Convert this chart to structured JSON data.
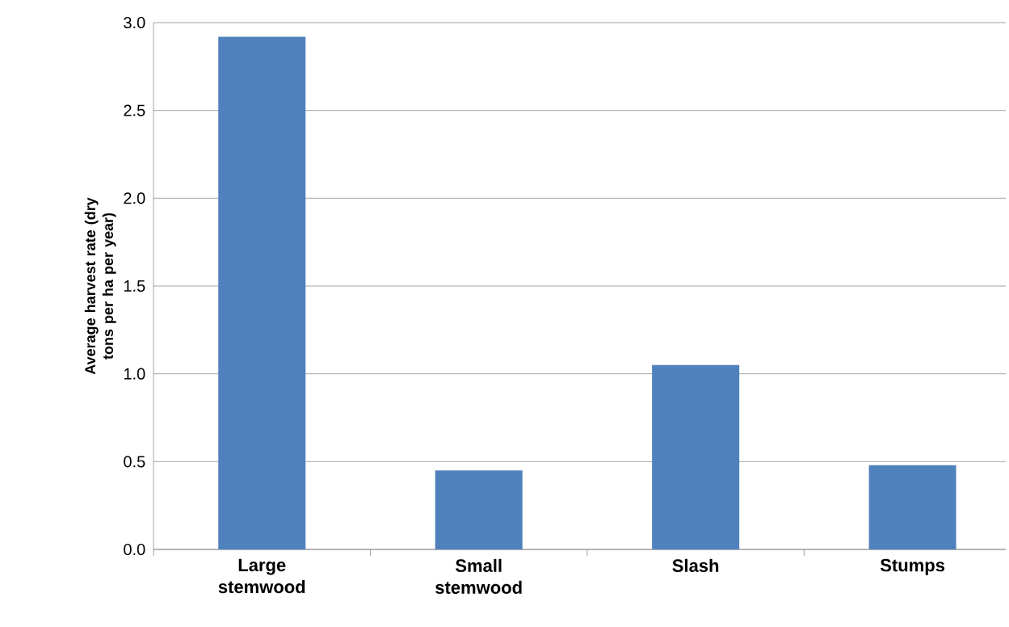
{
  "chart_data": {
    "type": "bar",
    "ylabel": "Average harvest rate (dry tons per ha per year)",
    "categories": [
      "Large stemwood",
      "Small stemwood",
      "Slash",
      "Stumps"
    ],
    "values": [
      2.92,
      0.45,
      1.05,
      0.48
    ],
    "color": "#4f81bd",
    "ylim": [
      0,
      3
    ],
    "yticks": [
      {
        "value": 0,
        "label": "0.0"
      },
      0.5,
      {
        "value": 1,
        "label": "1.0"
      },
      1.5,
      {
        "value": 2,
        "label": "2.0"
      },
      2.5,
      {
        "value": 3,
        "label": "3.0"
      }
    ],
    "grid": "y"
  }
}
